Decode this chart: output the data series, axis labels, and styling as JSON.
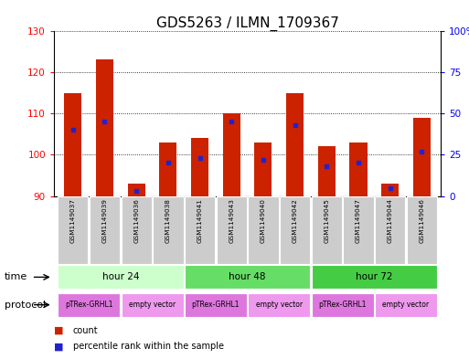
{
  "title": "GDS5263 / ILMN_1709367",
  "samples": [
    "GSM1149037",
    "GSM1149039",
    "GSM1149036",
    "GSM1149038",
    "GSM1149041",
    "GSM1149043",
    "GSM1149040",
    "GSM1149042",
    "GSM1149045",
    "GSM1149047",
    "GSM1149044",
    "GSM1149046"
  ],
  "counts": [
    115,
    123,
    93,
    103,
    104,
    110,
    103,
    115,
    102,
    103,
    93,
    109
  ],
  "percentile_ranks": [
    40,
    45,
    3,
    20,
    23,
    45,
    22,
    43,
    18,
    20,
    5,
    27
  ],
  "y_min": 90,
  "y_max": 130,
  "y_ticks": [
    90,
    100,
    110,
    120,
    130
  ],
  "y2_ticks": [
    0,
    25,
    50,
    75,
    100
  ],
  "time_groups": [
    {
      "label": "hour 24",
      "start": 0,
      "end": 3
    },
    {
      "label": "hour 48",
      "start": 4,
      "end": 7
    },
    {
      "label": "hour 72",
      "start": 8,
      "end": 11
    }
  ],
  "time_colors": [
    "#ccffcc",
    "#66dd66",
    "#44cc44"
  ],
  "protocol_groups": [
    {
      "label": "pTRex-GRHL1",
      "start": 0,
      "end": 1
    },
    {
      "label": "empty vector",
      "start": 2,
      "end": 3
    },
    {
      "label": "pTRex-GRHL1",
      "start": 4,
      "end": 5
    },
    {
      "label": "empty vector",
      "start": 6,
      "end": 7
    },
    {
      "label": "pTRex-GRHL1",
      "start": 8,
      "end": 9
    },
    {
      "label": "empty vector",
      "start": 10,
      "end": 11
    }
  ],
  "proto_colors": [
    "#dd77dd",
    "#ee99ee",
    "#dd77dd",
    "#ee99ee",
    "#dd77dd",
    "#ee99ee"
  ],
  "bar_color": "#cc2200",
  "dot_color": "#2222cc",
  "bar_width": 0.55,
  "background_color": "#ffffff",
  "sample_bg_color": "#cccccc",
  "title_fontsize": 11,
  "tick_fontsize": 7.5,
  "anno_fontsize": 7
}
